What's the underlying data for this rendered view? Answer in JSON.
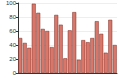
{
  "chart_data": {
    "type": "bar",
    "categories": [
      null,
      null,
      null,
      null,
      null,
      null,
      null,
      null,
      null,
      null,
      null,
      null,
      null,
      null,
      null,
      null,
      null,
      null,
      null,
      null,
      null,
      null
    ],
    "values": [
      50,
      43,
      36,
      99,
      86,
      63,
      60,
      37,
      83,
      69,
      21,
      61,
      87,
      19,
      47,
      44,
      50,
      74,
      56,
      29,
      76,
      40
    ],
    "color": "#d9776b",
    "ylim": [
      0,
      100
    ],
    "yticks": [
      0,
      20,
      40,
      60,
      80,
      100
    ],
    "grid": true
  }
}
